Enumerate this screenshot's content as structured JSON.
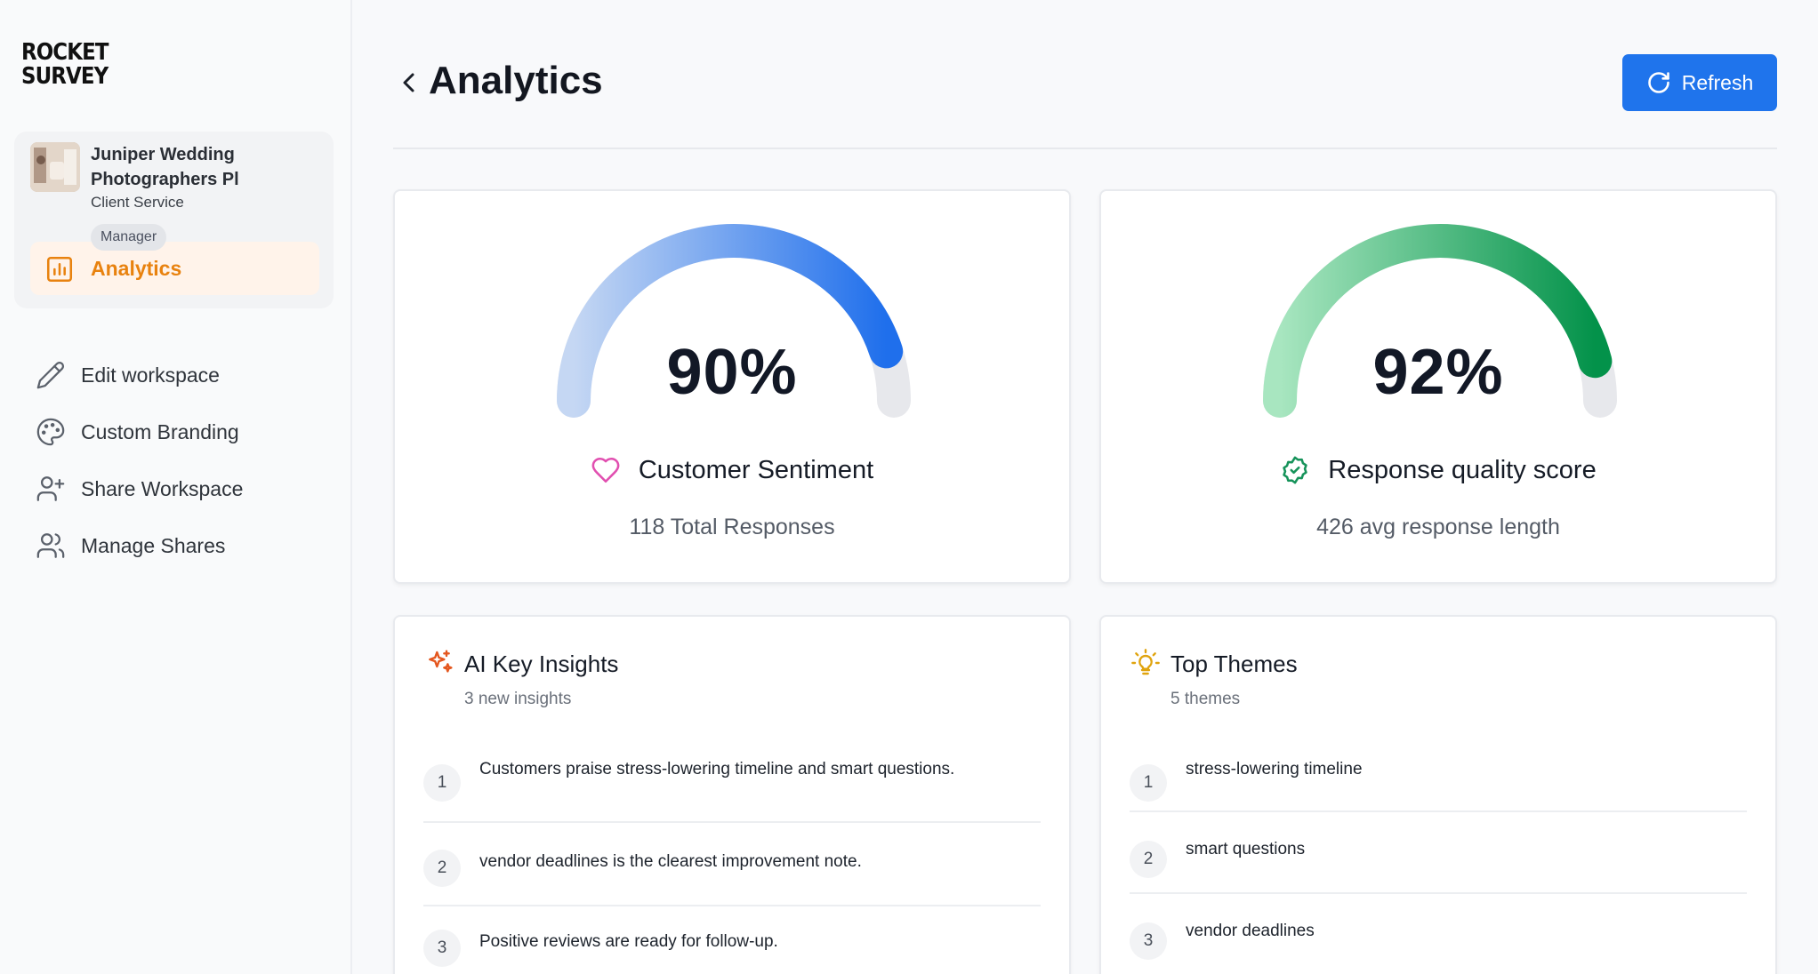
{
  "brand": {
    "line1": "ROCKET",
    "line2": "SURVEY"
  },
  "workspace": {
    "name": "Juniper Wedding Photographers Pl",
    "department": "Client Service",
    "role": "Manager",
    "active_item": "Analytics"
  },
  "nav": {
    "items": [
      {
        "label": "Edit workspace",
        "icon": "pencil-icon"
      },
      {
        "label": "Custom Branding",
        "icon": "palette-icon"
      },
      {
        "label": "Share Workspace",
        "icon": "user-plus-icon"
      },
      {
        "label": "Manage Shares",
        "icon": "users-icon"
      }
    ]
  },
  "header": {
    "title": "Analytics",
    "refresh_label": "Refresh"
  },
  "sentiment": {
    "value": "90%",
    "percent": 90,
    "label": "Customer Sentiment",
    "sub": "118 Total Responses"
  },
  "quality": {
    "value": "92%",
    "percent": 92,
    "label": "Response quality score",
    "sub": "426 avg response length"
  },
  "insights": {
    "title": "AI Key Insights",
    "sub": "3 new insights",
    "items": [
      {
        "num": "1",
        "text": "Customers praise stress-lowering timeline and smart questions."
      },
      {
        "num": "2",
        "text": "vendor deadlines is the clearest improvement note."
      },
      {
        "num": "3",
        "text": "Positive reviews are ready for follow-up."
      }
    ]
  },
  "themes": {
    "title": "Top Themes",
    "sub": "5 themes",
    "items": [
      {
        "num": "1",
        "text": "stress-lowering timeline"
      },
      {
        "num": "2",
        "text": "smart questions"
      },
      {
        "num": "3",
        "text": "vendor deadlines"
      }
    ]
  },
  "colors": {
    "accent": "#1f74ec",
    "active": "#e8820f",
    "sentiment_gauge": "#2274ed",
    "quality_gauge": "#06934b"
  }
}
